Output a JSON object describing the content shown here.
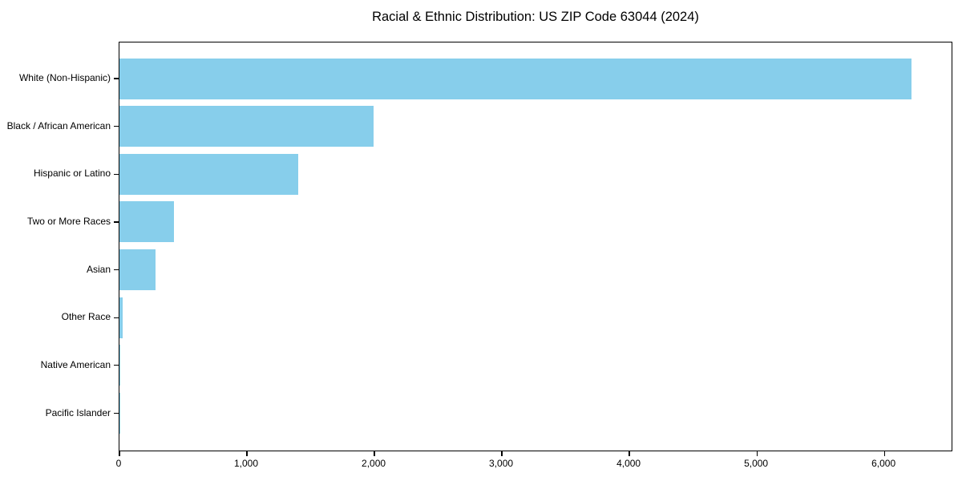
{
  "figure": {
    "background": "#ffffff",
    "text_color": "#000000",
    "spine_color": "#000000"
  },
  "chart_data": {
    "type": "bar",
    "orientation": "horizontal",
    "title": "Racial & Ethnic Distribution: US ZIP Code 63044 (2024)",
    "categories": [
      "White (Non-Hispanic)",
      "Black / African American",
      "Hispanic or Latino",
      "Two or More Races",
      "Asian",
      "Other Race",
      "Native American",
      "Pacific Islander"
    ],
    "values": [
      6210,
      1995,
      1400,
      425,
      280,
      25,
      8,
      2
    ],
    "xlabel": "",
    "ylabel": "",
    "xlim": [
      0,
      6540
    ],
    "x_ticks": [
      0,
      1000,
      2000,
      3000,
      4000,
      5000,
      6000
    ],
    "x_tick_labels": [
      "0",
      "1,000",
      "2,000",
      "3,000",
      "4,000",
      "5,000",
      "6,000"
    ],
    "bar_color": "#87CEEB",
    "grid": false,
    "legend_position": "none"
  }
}
